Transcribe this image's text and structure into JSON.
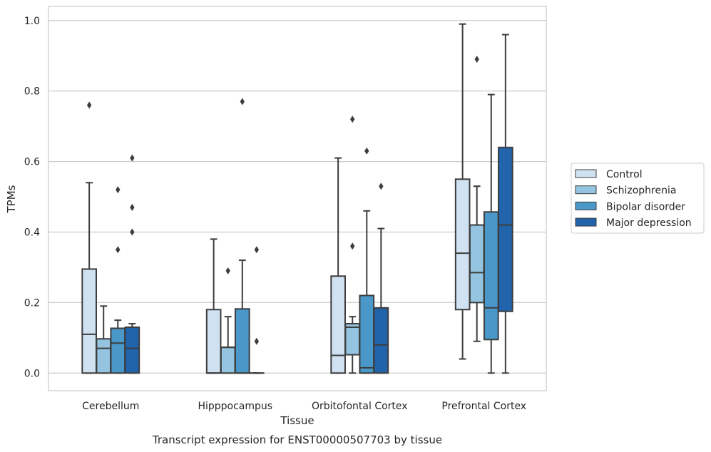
{
  "chart_data": {
    "type": "boxplot",
    "caption": "Transcript expression for ENST00000507703 by tissue",
    "xlabel": "Tissue",
    "ylabel": "TPMs",
    "ylim": [
      -0.05,
      1.04
    ],
    "yticks": [
      "0.0",
      "0.2",
      "0.4",
      "0.6",
      "0.8",
      "1.0"
    ],
    "grid": "horizontal",
    "legend_position": "right",
    "categories": [
      "Cerebellum",
      "Hipppocampus",
      "Orbitofontal Cortex",
      "Prefrontal Cortex"
    ],
    "series": [
      {
        "name": "Control",
        "color": "#d0e1f2",
        "boxes": [
          {
            "whislo": 0.0,
            "q1": 0.0,
            "med": 0.11,
            "q3": 0.295,
            "whishi": 0.54,
            "fliers": [
              0.76
            ]
          },
          {
            "whislo": 0.0,
            "q1": 0.0,
            "med": 0.0,
            "q3": 0.18,
            "whishi": 0.38,
            "fliers": []
          },
          {
            "whislo": 0.0,
            "q1": 0.0,
            "med": 0.05,
            "q3": 0.275,
            "whishi": 0.61,
            "fliers": []
          },
          {
            "whislo": 0.04,
            "q1": 0.18,
            "med": 0.34,
            "q3": 0.55,
            "whishi": 0.99,
            "fliers": []
          }
        ]
      },
      {
        "name": "Schizophrenia",
        "color": "#94c4df",
        "boxes": [
          {
            "whislo": 0.0,
            "q1": 0.0,
            "med": 0.07,
            "q3": 0.097,
            "whishi": 0.19,
            "fliers": []
          },
          {
            "whislo": 0.0,
            "q1": 0.0,
            "med": 0.073,
            "q3": 0.073,
            "whishi": 0.16,
            "fliers": [
              0.29
            ]
          },
          {
            "whislo": 0.0,
            "q1": 0.052,
            "med": 0.13,
            "q3": 0.14,
            "whishi": 0.16,
            "fliers": [
              0.36,
              0.72
            ]
          },
          {
            "whislo": 0.09,
            "q1": 0.2,
            "med": 0.285,
            "q3": 0.42,
            "whishi": 0.53,
            "fliers": [
              0.89
            ]
          }
        ]
      },
      {
        "name": "Bipolar disorder",
        "color": "#4a98c9",
        "boxes": [
          {
            "whislo": 0.0,
            "q1": 0.0,
            "med": 0.085,
            "q3": 0.127,
            "whishi": 0.15,
            "fliers": [
              0.35,
              0.52
            ]
          },
          {
            "whislo": 0.0,
            "q1": 0.0,
            "med": 0.0,
            "q3": 0.182,
            "whishi": 0.32,
            "fliers": [
              0.77
            ]
          },
          {
            "whislo": 0.0,
            "q1": 0.0,
            "med": 0.015,
            "q3": 0.22,
            "whishi": 0.46,
            "fliers": [
              0.63
            ]
          },
          {
            "whislo": 0.0,
            "q1": 0.095,
            "med": 0.185,
            "q3": 0.457,
            "whishi": 0.79,
            "fliers": []
          }
        ]
      },
      {
        "name": "Major depression",
        "color": "#2164ab",
        "boxes": [
          {
            "whislo": 0.0,
            "q1": 0.0,
            "med": 0.07,
            "q3": 0.13,
            "whishi": 0.14,
            "fliers": [
              0.4,
              0.47,
              0.61
            ]
          },
          {
            "whislo": 0.0,
            "q1": 0.0,
            "med": 0.0,
            "q3": 0.0,
            "whishi": 0.0,
            "fliers": [
              0.09,
              0.35
            ]
          },
          {
            "whislo": 0.0,
            "q1": 0.0,
            "med": 0.08,
            "q3": 0.185,
            "whishi": 0.41,
            "fliers": [
              0.53
            ]
          },
          {
            "whislo": 0.0,
            "q1": 0.175,
            "med": 0.42,
            "q3": 0.64,
            "whishi": 0.96,
            "fliers": []
          }
        ]
      }
    ]
  }
}
